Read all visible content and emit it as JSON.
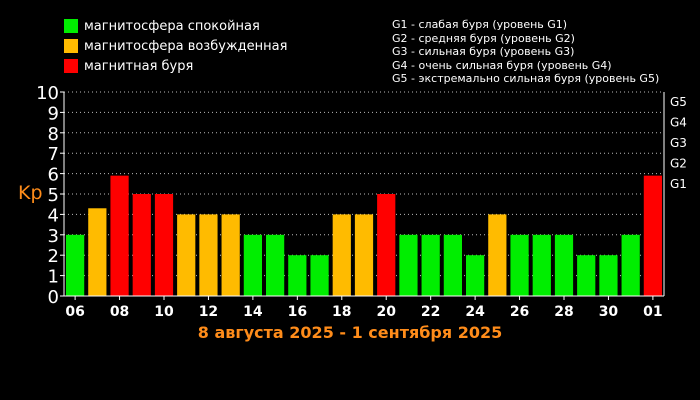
{
  "legend": [
    {
      "label": "магнитосфера спокойная",
      "color": "#00ee00"
    },
    {
      "label": "магнитосфера возбужденная",
      "color": "#ffbb00"
    },
    {
      "label": "магнитная буря",
      "color": "#ff0000"
    }
  ],
  "g_legend": [
    "G1 - слабая буря (уровень G1)",
    "G2 - средняя буря (уровень G2)",
    "G3 - сильная буря (уровень G3)",
    "G4 - очень сильная буря (уровень G4)",
    "G5 - экстремально сильная буря (уровень G5)"
  ],
  "chart_data": {
    "type": "bar",
    "ylabel": "Kp",
    "ylim": [
      0,
      10
    ],
    "yticks": [
      "0",
      "1",
      "2",
      "3",
      "4",
      "5",
      "6",
      "7",
      "8",
      "9",
      "10"
    ],
    "right_ticks": [
      {
        "label": "G1",
        "value": 5
      },
      {
        "label": "G2",
        "value": 6
      },
      {
        "label": "G3",
        "value": 7
      },
      {
        "label": "G4",
        "value": 8
      },
      {
        "label": "G5",
        "value": 9
      }
    ],
    "xticks": [
      "06",
      "08",
      "10",
      "12",
      "14",
      "16",
      "18",
      "20",
      "22",
      "24",
      "26",
      "28",
      "30",
      "01"
    ],
    "values": [
      3,
      4.3,
      5.9,
      5,
      5,
      4,
      4,
      4,
      3,
      3,
      2,
      2,
      4,
      4,
      5,
      3,
      3,
      3,
      2,
      4,
      3,
      3,
      3,
      2,
      2,
      3,
      5.9
    ],
    "colors": {
      "quiet": "#00ee00",
      "active": "#ffbb00",
      "storm": "#ff0000"
    },
    "grid": true
  },
  "date_range": "8 августа 2025 - 1 сентября 2025"
}
